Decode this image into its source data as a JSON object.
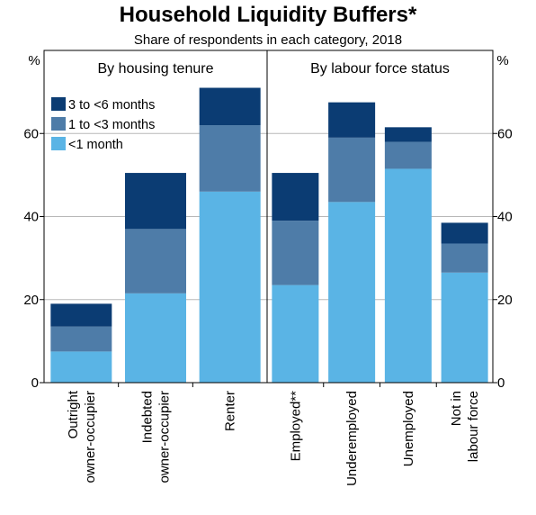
{
  "chart_data": {
    "type": "bar",
    "stacked": true,
    "title": "Household Liquidity Buffers*",
    "subtitle": "Share of respondents in each category, 2018",
    "unit_left": "%",
    "unit_right": "%",
    "ylim": [
      0,
      80
    ],
    "yticks": [
      0,
      20,
      40,
      60
    ],
    "grid": true,
    "legend_position": "top-left",
    "panels": [
      {
        "title": "By housing tenure",
        "categories": [
          [
            "Outright",
            "owner-occupier"
          ],
          [
            "Indebted",
            "owner-occupier"
          ],
          [
            "Renter"
          ]
        ]
      },
      {
        "title": "By labour force status",
        "categories": [
          [
            "Employed**"
          ],
          [
            "Underemployed"
          ],
          [
            "Unemployed"
          ],
          [
            "Not in",
            "labour force"
          ]
        ]
      }
    ],
    "series": [
      {
        "name": "<1 month",
        "color": "#5ab4e5",
        "values": [
          7.5,
          21.5,
          46,
          23.5,
          43.5,
          51.5,
          26.5
        ]
      },
      {
        "name": "1 to <3 months",
        "color": "#4e7ca8",
        "values": [
          6,
          15.5,
          16,
          15.5,
          15.5,
          6.5,
          7
        ]
      },
      {
        "name": "3 to <6 months",
        "color": "#0b3c73",
        "values": [
          5.5,
          13.5,
          9,
          11.5,
          8.5,
          3.5,
          5
        ]
      }
    ],
    "legend_order": [
      "3 to <6 months",
      "1 to <3 months",
      "<1 month"
    ]
  }
}
